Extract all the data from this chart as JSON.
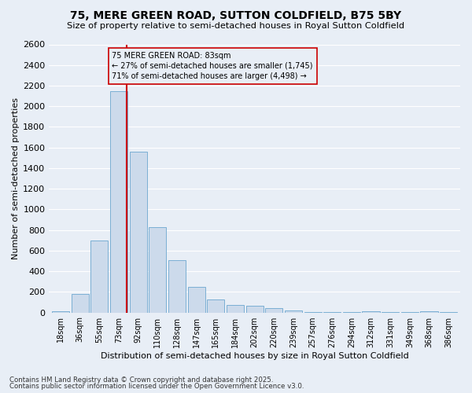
{
  "title": "75, MERE GREEN ROAD, SUTTON COLDFIELD, B75 5BY",
  "subtitle": "Size of property relative to semi-detached houses in Royal Sutton Coldfield",
  "xlabel": "Distribution of semi-detached houses by size in Royal Sutton Coldfield",
  "ylabel": "Number of semi-detached properties",
  "categories": [
    "18sqm",
    "36sqm",
    "55sqm",
    "73sqm",
    "92sqm",
    "110sqm",
    "128sqm",
    "147sqm",
    "165sqm",
    "184sqm",
    "202sqm",
    "220sqm",
    "239sqm",
    "257sqm",
    "276sqm",
    "294sqm",
    "312sqm",
    "331sqm",
    "349sqm",
    "368sqm",
    "386sqm"
  ],
  "values": [
    15,
    180,
    700,
    2150,
    1560,
    830,
    510,
    250,
    125,
    70,
    65,
    45,
    20,
    5,
    5,
    5,
    15,
    5,
    5,
    15,
    5
  ],
  "bar_color": "#ccdaeb",
  "bar_edge_color": "#7bafd4",
  "highlight_bar_index": 3,
  "red_line_color": "#cc0000",
  "annotation_line1": "75 MERE GREEN ROAD: 83sqm",
  "annotation_line2": "← 27% of semi-detached houses are smaller (1,745)",
  "annotation_line3": "71% of semi-detached houses are larger (4,498) →",
  "ylim": [
    0,
    2600
  ],
  "yticks": [
    0,
    200,
    400,
    600,
    800,
    1000,
    1200,
    1400,
    1600,
    1800,
    2000,
    2200,
    2400,
    2600
  ],
  "bg_color": "#e8eef6",
  "grid_color": "#ffffff",
  "footer_line1": "Contains HM Land Registry data © Crown copyright and database right 2025.",
  "footer_line2": "Contains public sector information licensed under the Open Government Licence v3.0."
}
